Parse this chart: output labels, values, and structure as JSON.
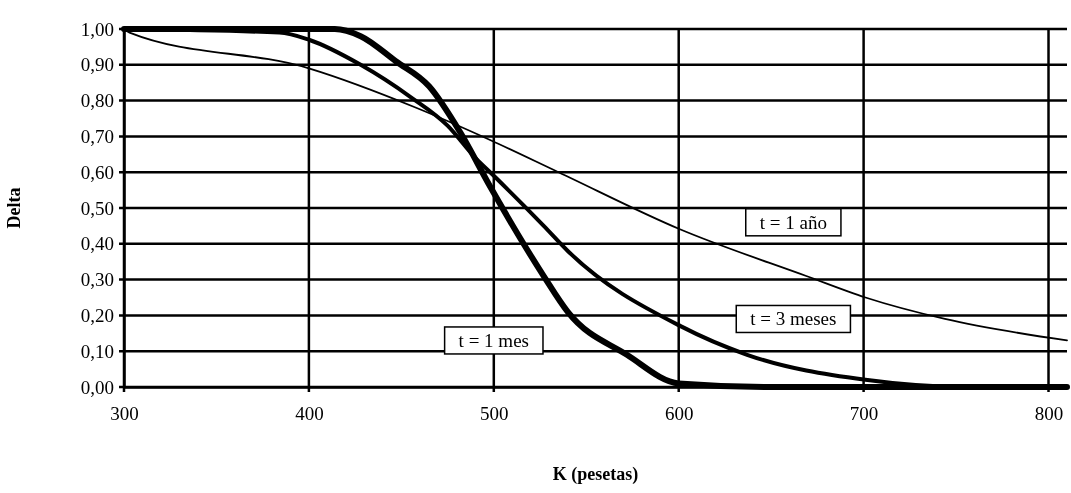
{
  "chart_data": {
    "type": "line",
    "xlabel": "K (pesetas)",
    "ylabel": "Delta",
    "xlim": [
      300,
      810
    ],
    "xticks": [
      300,
      400,
      500,
      600,
      700,
      800
    ],
    "ylim": [
      0,
      1
    ],
    "yticks": [
      {
        "value": 0,
        "label": "0,00"
      },
      {
        "value": 0.1,
        "label": "0,10"
      },
      {
        "value": 0.2,
        "label": "0,20"
      },
      {
        "value": 0.3,
        "label": "0,30"
      },
      {
        "value": 0.4,
        "label": "0,40"
      },
      {
        "value": 0.5,
        "label": "0,50"
      },
      {
        "value": 0.6,
        "label": "0,60"
      },
      {
        "value": 0.7,
        "label": "0,70"
      },
      {
        "value": 0.8,
        "label": "0,80"
      },
      {
        "value": 0.9,
        "label": "0,90"
      },
      {
        "value": 1,
        "label": "1,00"
      }
    ],
    "grid": true,
    "legend": false,
    "marker": "none",
    "line_style": "solid",
    "series": [
      {
        "name": "t = 1 mes",
        "color": "#000000",
        "x": [
          300,
          400,
          414,
          428,
          447,
          465,
          482,
          498,
          527,
          540,
          572,
          600,
          650,
          700,
          810
        ],
        "values": [
          1,
          1,
          1,
          0.98,
          0.91,
          0.84,
          0.71,
          0.56,
          0.31,
          0.21,
          0.09,
          0.01,
          0,
          0,
          0
        ]
      },
      {
        "name": "t = 3 meses",
        "color": "#000000",
        "x": [
          300,
          384,
          400,
          428,
          455,
          475,
          490,
          500,
          527,
          540,
          601,
          637,
          701,
          755,
          810
        ],
        "values": [
          1,
          0.99,
          0.97,
          0.9,
          0.81,
          0.73,
          0.64,
          0.59,
          0.45,
          0.38,
          0.17,
          0.09,
          0.02,
          0,
          0
        ]
      },
      {
        "name": "t = 1 año",
        "color": "#000000",
        "x": [
          300,
          303,
          400,
          458,
          498,
          535,
          601,
          669,
          701,
          744,
          810
        ],
        "values": [
          1,
          0.99,
          0.89,
          0.78,
          0.69,
          0.6,
          0.44,
          0.31,
          0.25,
          0.19,
          0.13
        ]
      }
    ]
  }
}
